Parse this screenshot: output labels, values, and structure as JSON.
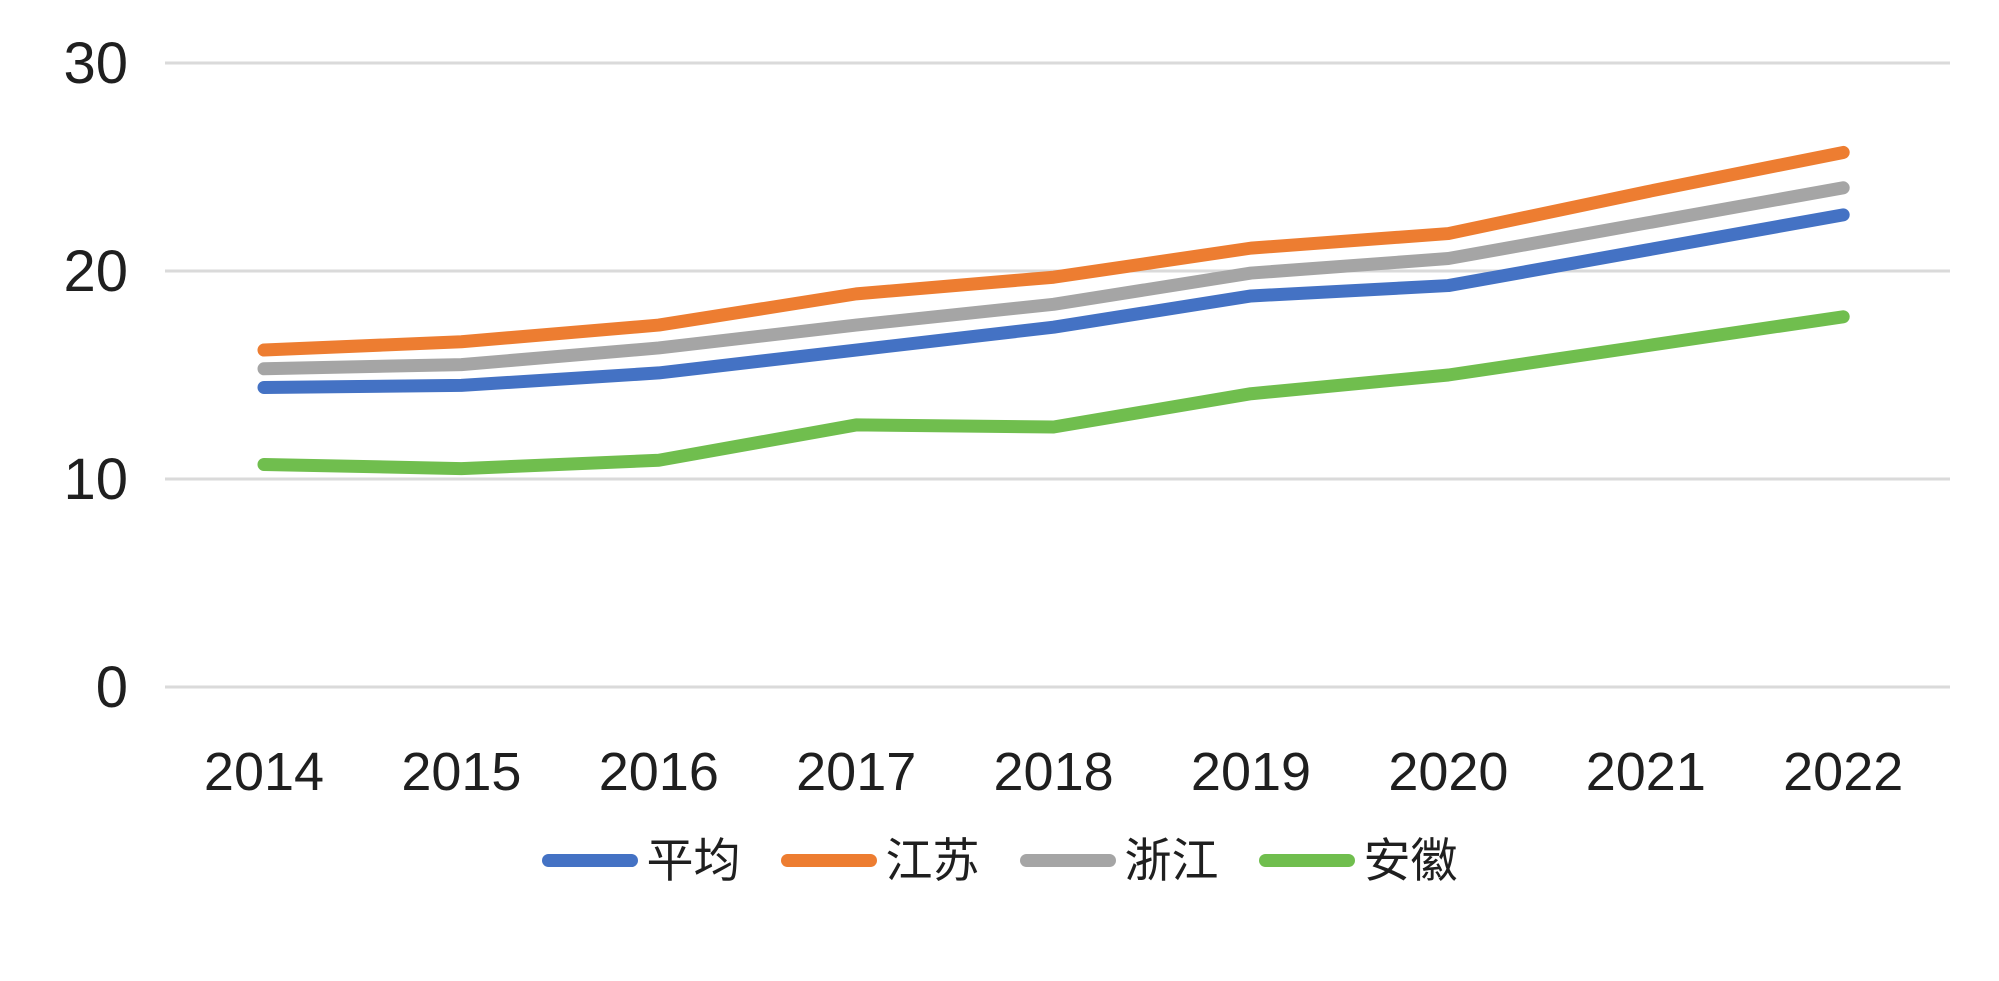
{
  "chart_data": {
    "type": "line",
    "title": "",
    "xlabel": "",
    "ylabel": "",
    "categories": [
      "2014",
      "2015",
      "2016",
      "2017",
      "2018",
      "2019",
      "2020",
      "2021",
      "2022"
    ],
    "series": [
      {
        "name": "平均",
        "color": "#4472C4",
        "values": [
          14.4,
          14.5,
          15.1,
          16.2,
          17.3,
          18.8,
          19.3,
          21.0,
          22.7
        ]
      },
      {
        "name": "江苏",
        "color": "#ED7D31",
        "values": [
          16.2,
          16.6,
          17.4,
          18.9,
          19.7,
          21.1,
          21.8,
          23.8,
          25.7
        ]
      },
      {
        "name": "浙江",
        "color": "#A5A5A5",
        "values": [
          15.3,
          15.5,
          16.3,
          17.4,
          18.4,
          19.9,
          20.6,
          22.3,
          24.0
        ]
      },
      {
        "name": "安徽",
        "color": "#70BE4E",
        "values": [
          10.7,
          10.5,
          10.9,
          12.6,
          12.5,
          14.1,
          15.0,
          16.4,
          17.8
        ]
      }
    ],
    "ylim": [
      0,
      30
    ],
    "yticks": [
      0,
      10,
      20,
      30
    ],
    "grid": true,
    "legend_position": "bottom"
  },
  "colors": {
    "background": "#FFFFFF",
    "gridline": "#DADADA",
    "axis_text": "#1F1F1F"
  }
}
